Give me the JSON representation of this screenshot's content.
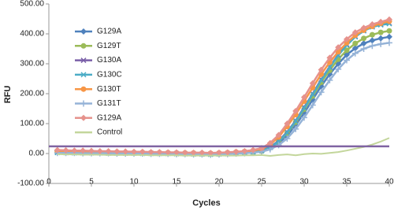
{
  "chart_data": {
    "type": "line",
    "x_label": "Cycles",
    "y_label": "RFU",
    "x": [
      1,
      2,
      3,
      4,
      5,
      6,
      7,
      8,
      9,
      10,
      11,
      12,
      13,
      14,
      15,
      16,
      17,
      18,
      19,
      20,
      21,
      22,
      23,
      24,
      25,
      26,
      27,
      28,
      29,
      30,
      31,
      32,
      33,
      34,
      35,
      36,
      37,
      38,
      39,
      40
    ],
    "xlim": [
      0,
      40
    ],
    "xticks": [
      0,
      5,
      10,
      15,
      20,
      25,
      30,
      35,
      40
    ],
    "ylim": [
      -100,
      500
    ],
    "yticks": [
      {
        "value": -100,
        "label": "-100.00"
      },
      {
        "value": 0,
        "label": "0.00"
      },
      {
        "value": 100,
        "label": "100.00"
      },
      {
        "value": 200,
        "label": "200.00"
      },
      {
        "value": 300,
        "label": "300.00"
      },
      {
        "value": 400,
        "label": "400.00"
      },
      {
        "value": 500,
        "label": "500.00"
      }
    ],
    "threshold": 24,
    "threshold_color": "#8064a2",
    "legend": "upper left",
    "series": [
      {
        "name": "G129A",
        "color": "#4f81bd",
        "marker": "diamond",
        "values": [
          10,
          9,
          8,
          7,
          6,
          5,
          5,
          4,
          4,
          3,
          3,
          2,
          2,
          2,
          1,
          1,
          0,
          -1,
          -2,
          -2,
          -1,
          0,
          2,
          4,
          8,
          18,
          35,
          60,
          95,
          135,
          180,
          225,
          265,
          300,
          330,
          352,
          368,
          378,
          385,
          390
        ]
      },
      {
        "name": "G129T",
        "color": "#9bbb59",
        "marker": "circle",
        "values": [
          6,
          5,
          5,
          4,
          4,
          3,
          3,
          3,
          2,
          2,
          2,
          1,
          1,
          1,
          0,
          0,
          -1,
          -1,
          -2,
          -1,
          0,
          1,
          3,
          5,
          8,
          20,
          40,
          68,
          105,
          148,
          192,
          238,
          278,
          315,
          345,
          368,
          385,
          397,
          405,
          410
        ]
      },
      {
        "name": "G130A",
        "color": "#7a5fa8",
        "marker": "x",
        "values": [
          4,
          3,
          3,
          3,
          2,
          2,
          2,
          2,
          1,
          1,
          1,
          1,
          0,
          0,
          0,
          -1,
          -1,
          -2,
          -2,
          -1,
          0,
          2,
          4,
          6,
          10,
          22,
          42,
          72,
          110,
          155,
          200,
          248,
          290,
          330,
          365,
          392,
          412,
          425,
          432,
          436
        ]
      },
      {
        "name": "G130C",
        "color": "#4bacc6",
        "marker": "x",
        "values": [
          3,
          3,
          2,
          2,
          2,
          2,
          1,
          1,
          1,
          1,
          0,
          0,
          0,
          0,
          -1,
          -1,
          -2,
          -2,
          -3,
          -2,
          -1,
          1,
          3,
          5,
          9,
          20,
          40,
          70,
          108,
          152,
          198,
          245,
          288,
          328,
          362,
          390,
          410,
          423,
          430,
          434
        ]
      },
      {
        "name": "G130T",
        "color": "#f79646",
        "marker": "circle",
        "values": [
          8,
          7,
          7,
          6,
          6,
          5,
          5,
          5,
          4,
          4,
          4,
          3,
          3,
          3,
          2,
          2,
          2,
          1,
          1,
          2,
          3,
          5,
          7,
          10,
          15,
          30,
          55,
          90,
          130,
          175,
          220,
          265,
          305,
          340,
          370,
          395,
          412,
          425,
          435,
          442
        ]
      },
      {
        "name": "G131T",
        "color": "#95b3d7",
        "marker": "plus",
        "values": [
          2,
          2,
          2,
          1,
          1,
          1,
          1,
          0,
          0,
          0,
          0,
          -1,
          -1,
          -1,
          -2,
          -2,
          -3,
          -3,
          -4,
          -3,
          -2,
          0,
          1,
          3,
          6,
          14,
          28,
          50,
          82,
          120,
          162,
          205,
          245,
          282,
          312,
          335,
          350,
          360,
          366,
          370
        ]
      },
      {
        "name": "G129A",
        "color": "#e6928c",
        "marker": "diamond",
        "values": [
          12,
          11,
          10,
          10,
          9,
          8,
          8,
          7,
          7,
          6,
          6,
          5,
          5,
          4,
          4,
          3,
          3,
          3,
          2,
          3,
          4,
          6,
          8,
          12,
          18,
          35,
          62,
          100,
          142,
          188,
          235,
          280,
          320,
          355,
          382,
          405,
          420,
          432,
          440,
          448
        ]
      },
      {
        "name": "Control",
        "color": "#c3d69b",
        "marker": "none",
        "values": [
          -2,
          -3,
          -3,
          -4,
          -4,
          -4,
          -5,
          -5,
          -5,
          -5,
          -5,
          -6,
          -6,
          -6,
          -6,
          -7,
          -7,
          -7,
          -7,
          -7,
          -7,
          -7,
          -6,
          -6,
          -5,
          -8,
          -5,
          -3,
          -6,
          -2,
          0,
          -1,
          2,
          5,
          10,
          16,
          22,
          30,
          40,
          52
        ]
      }
    ]
  }
}
